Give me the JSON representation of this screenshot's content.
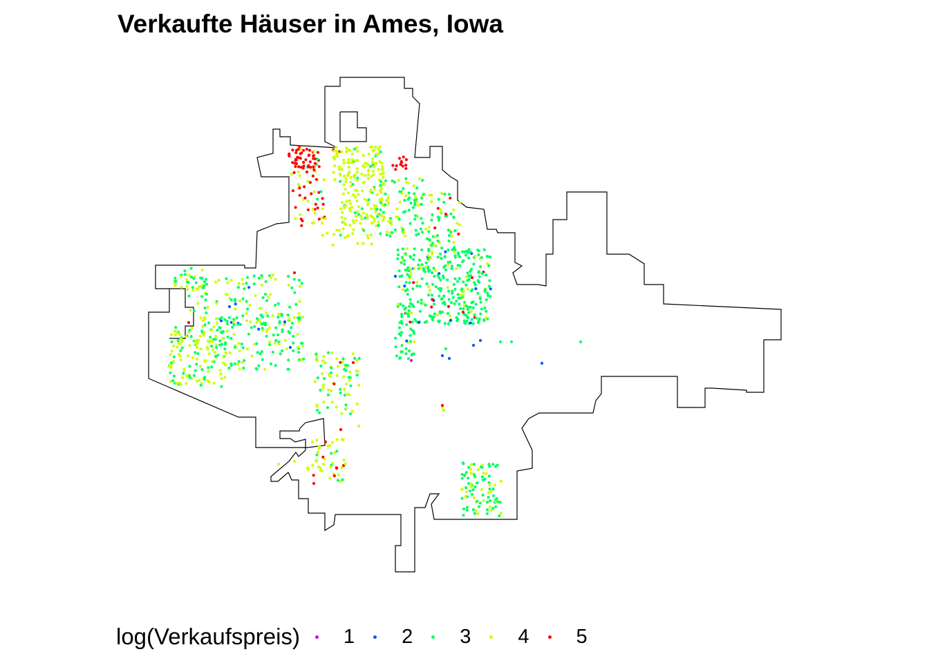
{
  "title": "Verkaufte Häuser in Ames, Iowa",
  "legend": {
    "title": "log(Verkaufspreis)",
    "items": [
      {
        "label": "1",
        "color": "#cc00ff"
      },
      {
        "label": "2",
        "color": "#0055ff"
      },
      {
        "label": "3",
        "color": "#00ff66"
      },
      {
        "label": "4",
        "color": "#ccff00"
      },
      {
        "label": "5",
        "color": "#ff0000"
      }
    ]
  },
  "chart_data": {
    "type": "scatter",
    "map": "Ames, Iowa city boundary",
    "color_variable": "log(Verkaufspreis)",
    "classes": [
      1,
      2,
      3,
      4,
      5
    ],
    "point_size_class": "small",
    "boundary_color": "#000000"
  }
}
